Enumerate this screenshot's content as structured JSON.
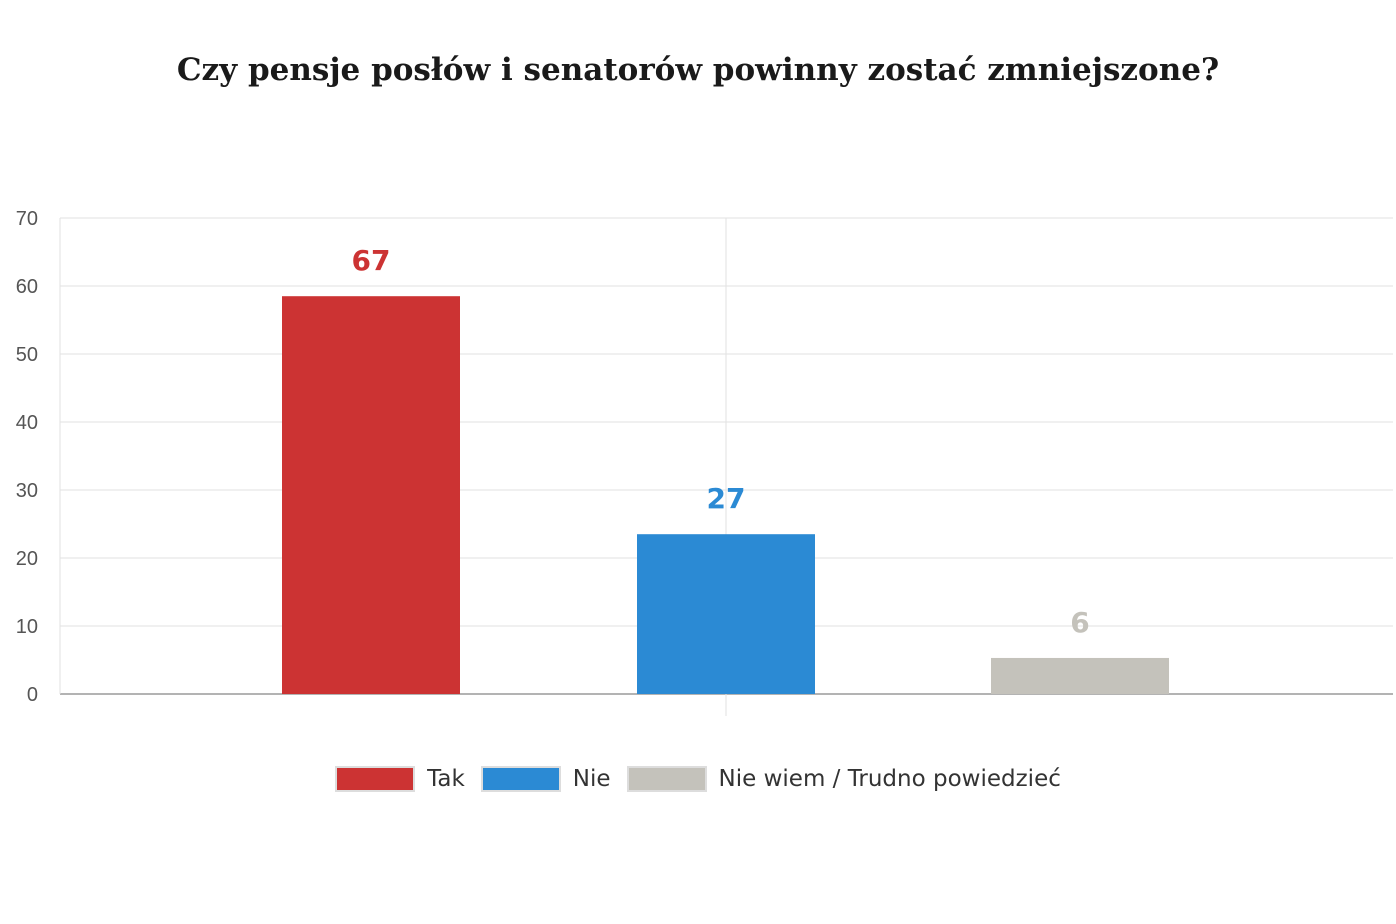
{
  "title": "Czy pensje posłów i senatorów powinny zostać zmniejszone?",
  "chart_data": {
    "type": "bar",
    "title": "Czy pensje posłów i senatorów powinny zostać zmniejszone?",
    "categories": [
      "Tak",
      "Nie",
      "Nie wiem / Trudno powiedzieć"
    ],
    "values": [
      58.5,
      23.5,
      5.3
    ],
    "data_labels": [
      "67",
      "27",
      "6"
    ],
    "colors": [
      "#cc3333",
      "#2b8ad4",
      "#c4c2bb"
    ],
    "yticks": [
      "0",
      "10",
      "20",
      "30",
      "40",
      "50",
      "60",
      "70"
    ],
    "ylim": [
      0,
      70
    ],
    "xlabel": "",
    "ylabel": "",
    "grid": true,
    "legend": "bottom"
  }
}
